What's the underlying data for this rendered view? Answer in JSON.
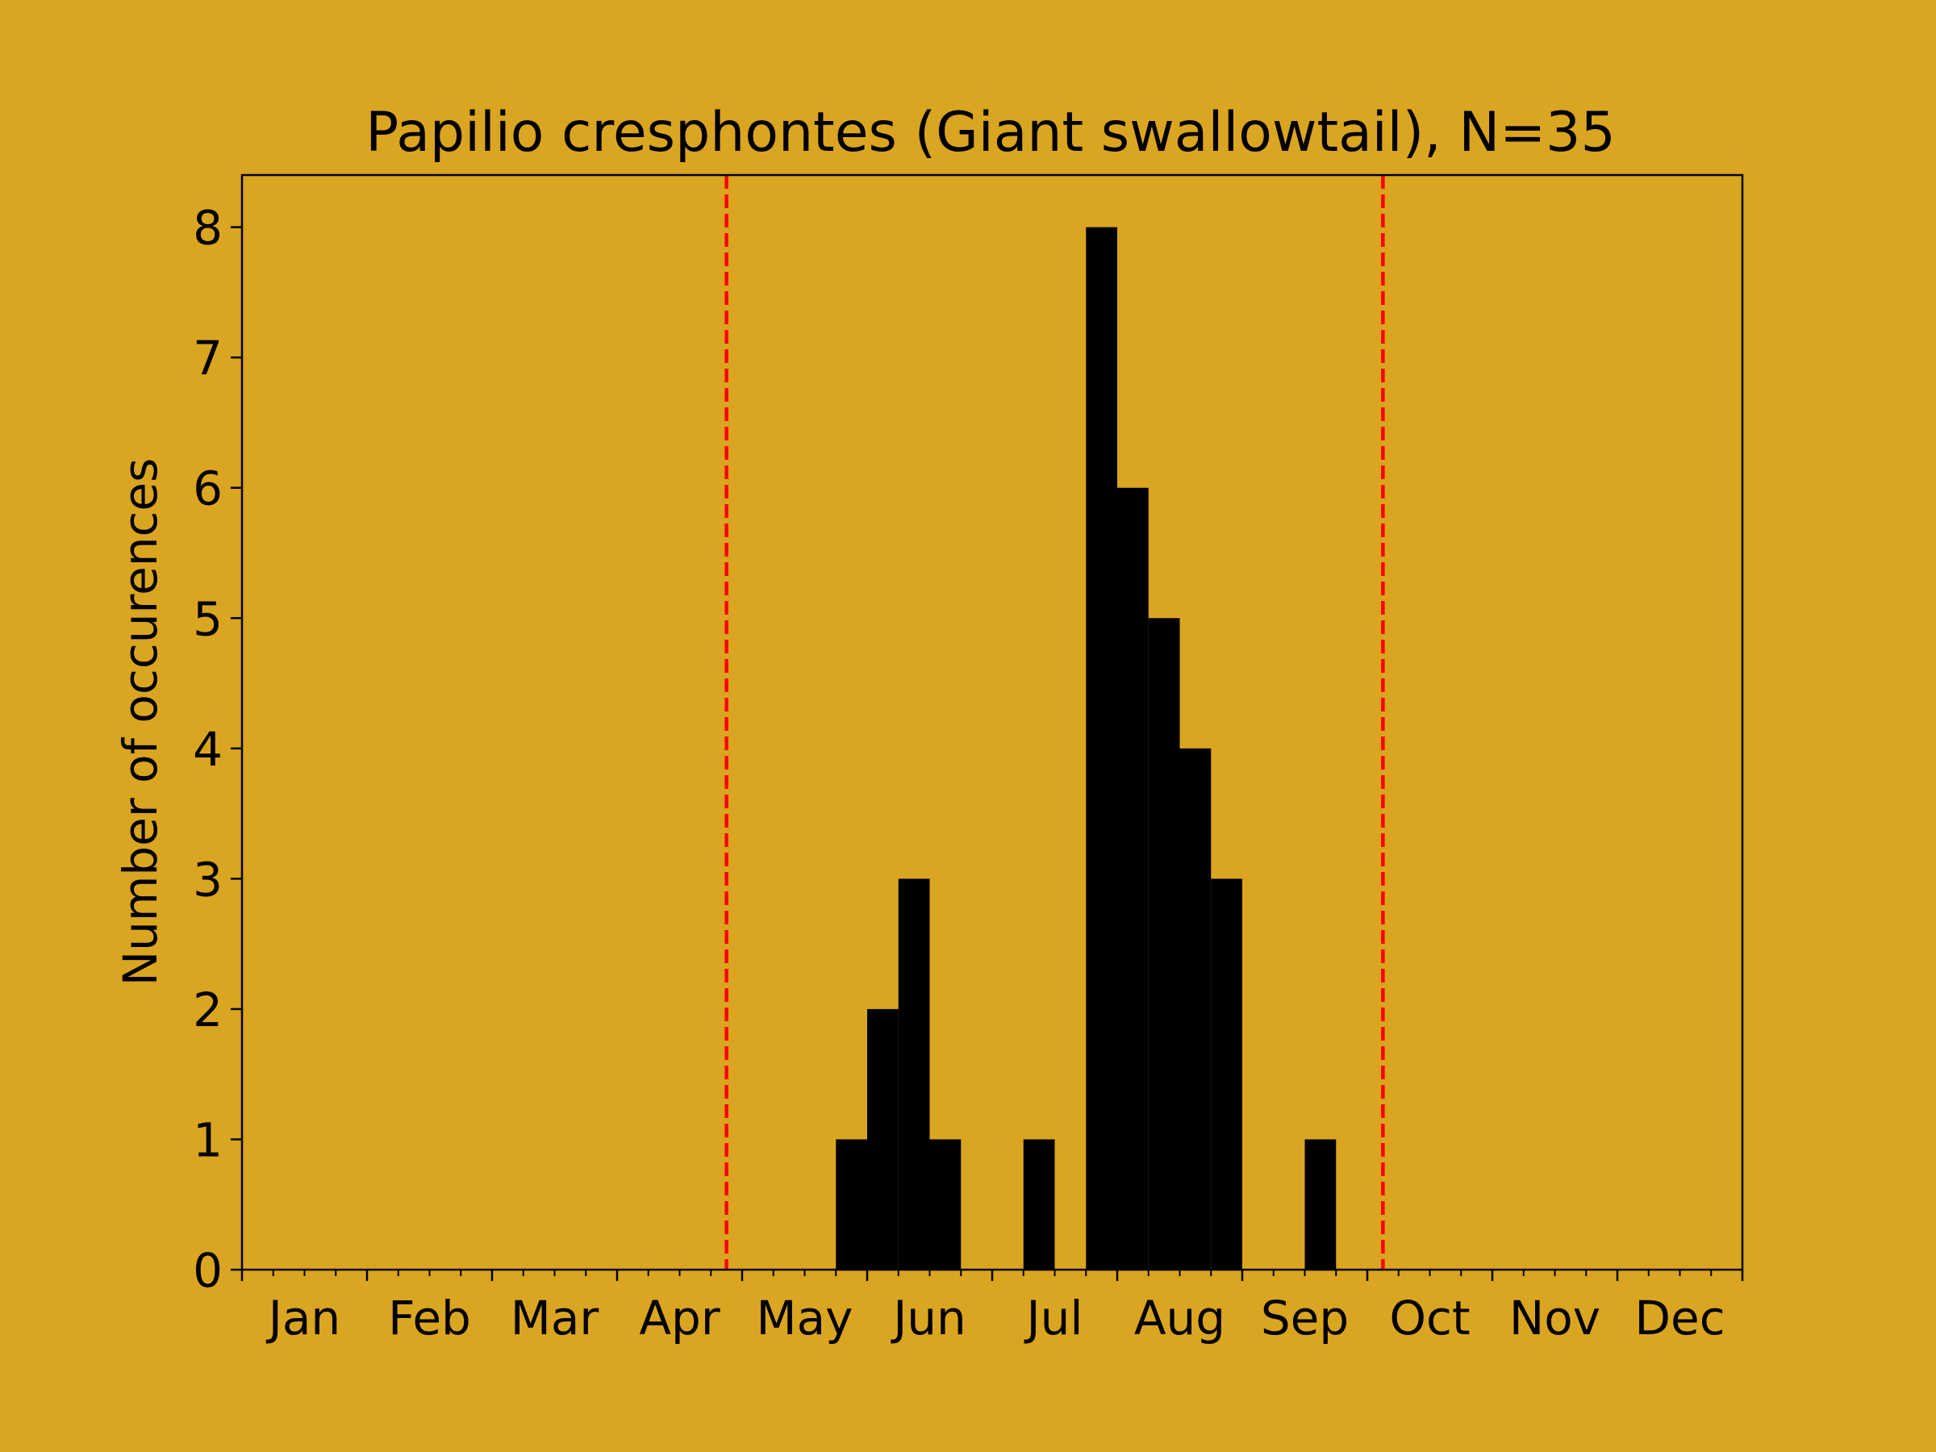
{
  "chart_data": {
    "type": "bar",
    "title": "Papilio cresphontes (Giant swallowtail), N=35",
    "ylabel": "Number of occurences",
    "xlabel": "",
    "xlim": [
      1,
      49
    ],
    "ylim": [
      0,
      8.4
    ],
    "yticks": [
      0,
      1,
      2,
      3,
      4,
      5,
      6,
      7,
      8
    ],
    "month_labels": [
      "Jan",
      "Feb",
      "Mar",
      "Apr",
      "May",
      "Jun",
      "Jul",
      "Aug",
      "Sep",
      "Oct",
      "Nov",
      "Dec"
    ],
    "bin_width": 1,
    "bins": [
      {
        "start": 20,
        "count": 1
      },
      {
        "start": 21,
        "count": 2
      },
      {
        "start": 22,
        "count": 3
      },
      {
        "start": 23,
        "count": 1
      },
      {
        "start": 26,
        "count": 1
      },
      {
        "start": 28,
        "count": 8
      },
      {
        "start": 29,
        "count": 6
      },
      {
        "start": 30,
        "count": 5
      },
      {
        "start": 31,
        "count": 4
      },
      {
        "start": 32,
        "count": 3
      },
      {
        "start": 35,
        "count": 1
      }
    ],
    "reference_lines": [
      16.5,
      37.5
    ],
    "colors": {
      "background": "#DAA520",
      "bars": "#000000",
      "reference_line": "#FF0000"
    },
    "grid": false,
    "legend": "none"
  }
}
